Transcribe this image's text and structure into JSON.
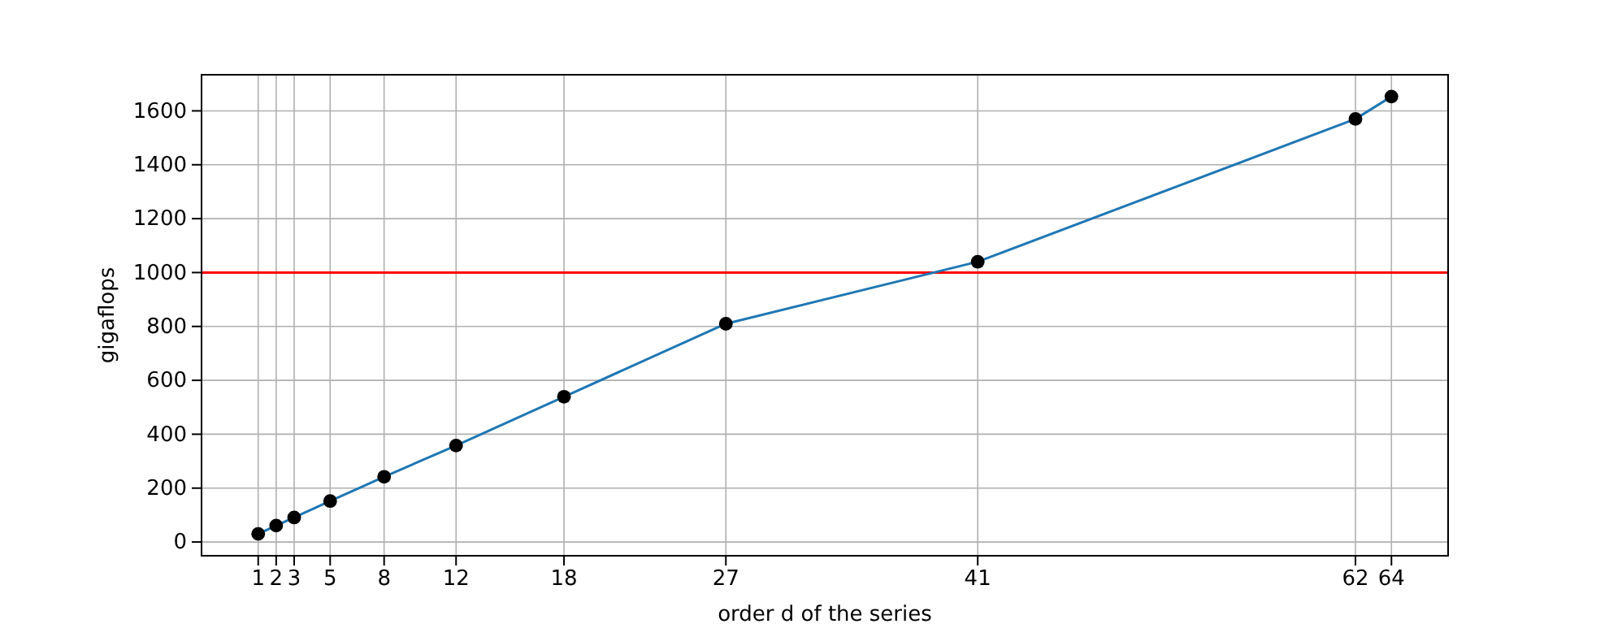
{
  "chart_data": {
    "type": "line",
    "xlabel": "order d of the series",
    "ylabel": "gigaflops",
    "x": [
      1,
      2,
      3,
      5,
      8,
      12,
      18,
      27,
      41,
      62,
      64
    ],
    "series": [
      {
        "color": "#1f77b4",
        "marker": "none",
        "values": [
          30,
          61,
          91,
          152,
          242,
          358,
          539,
          810,
          1040,
          1570,
          1653
        ]
      },
      {
        "type": "scatter",
        "color": "#000000",
        "marker": "circle",
        "values": [
          30,
          61,
          91,
          152,
          242,
          358,
          539,
          810,
          1040,
          1570,
          1653
        ]
      }
    ],
    "xlim": [
      -2.15,
      67.15
    ],
    "xticks": [
      1,
      2,
      3,
      5,
      8,
      12,
      18,
      27,
      41,
      62,
      64
    ],
    "ylim": [
      -51,
      1734
    ],
    "yticks": [
      0,
      200,
      400,
      600,
      800,
      1000,
      1200,
      1400,
      1600
    ],
    "ref_lines": [
      {
        "axis": "y",
        "value": 1000,
        "color": "#ff0000"
      }
    ],
    "grid": true,
    "line_style": "solid"
  }
}
